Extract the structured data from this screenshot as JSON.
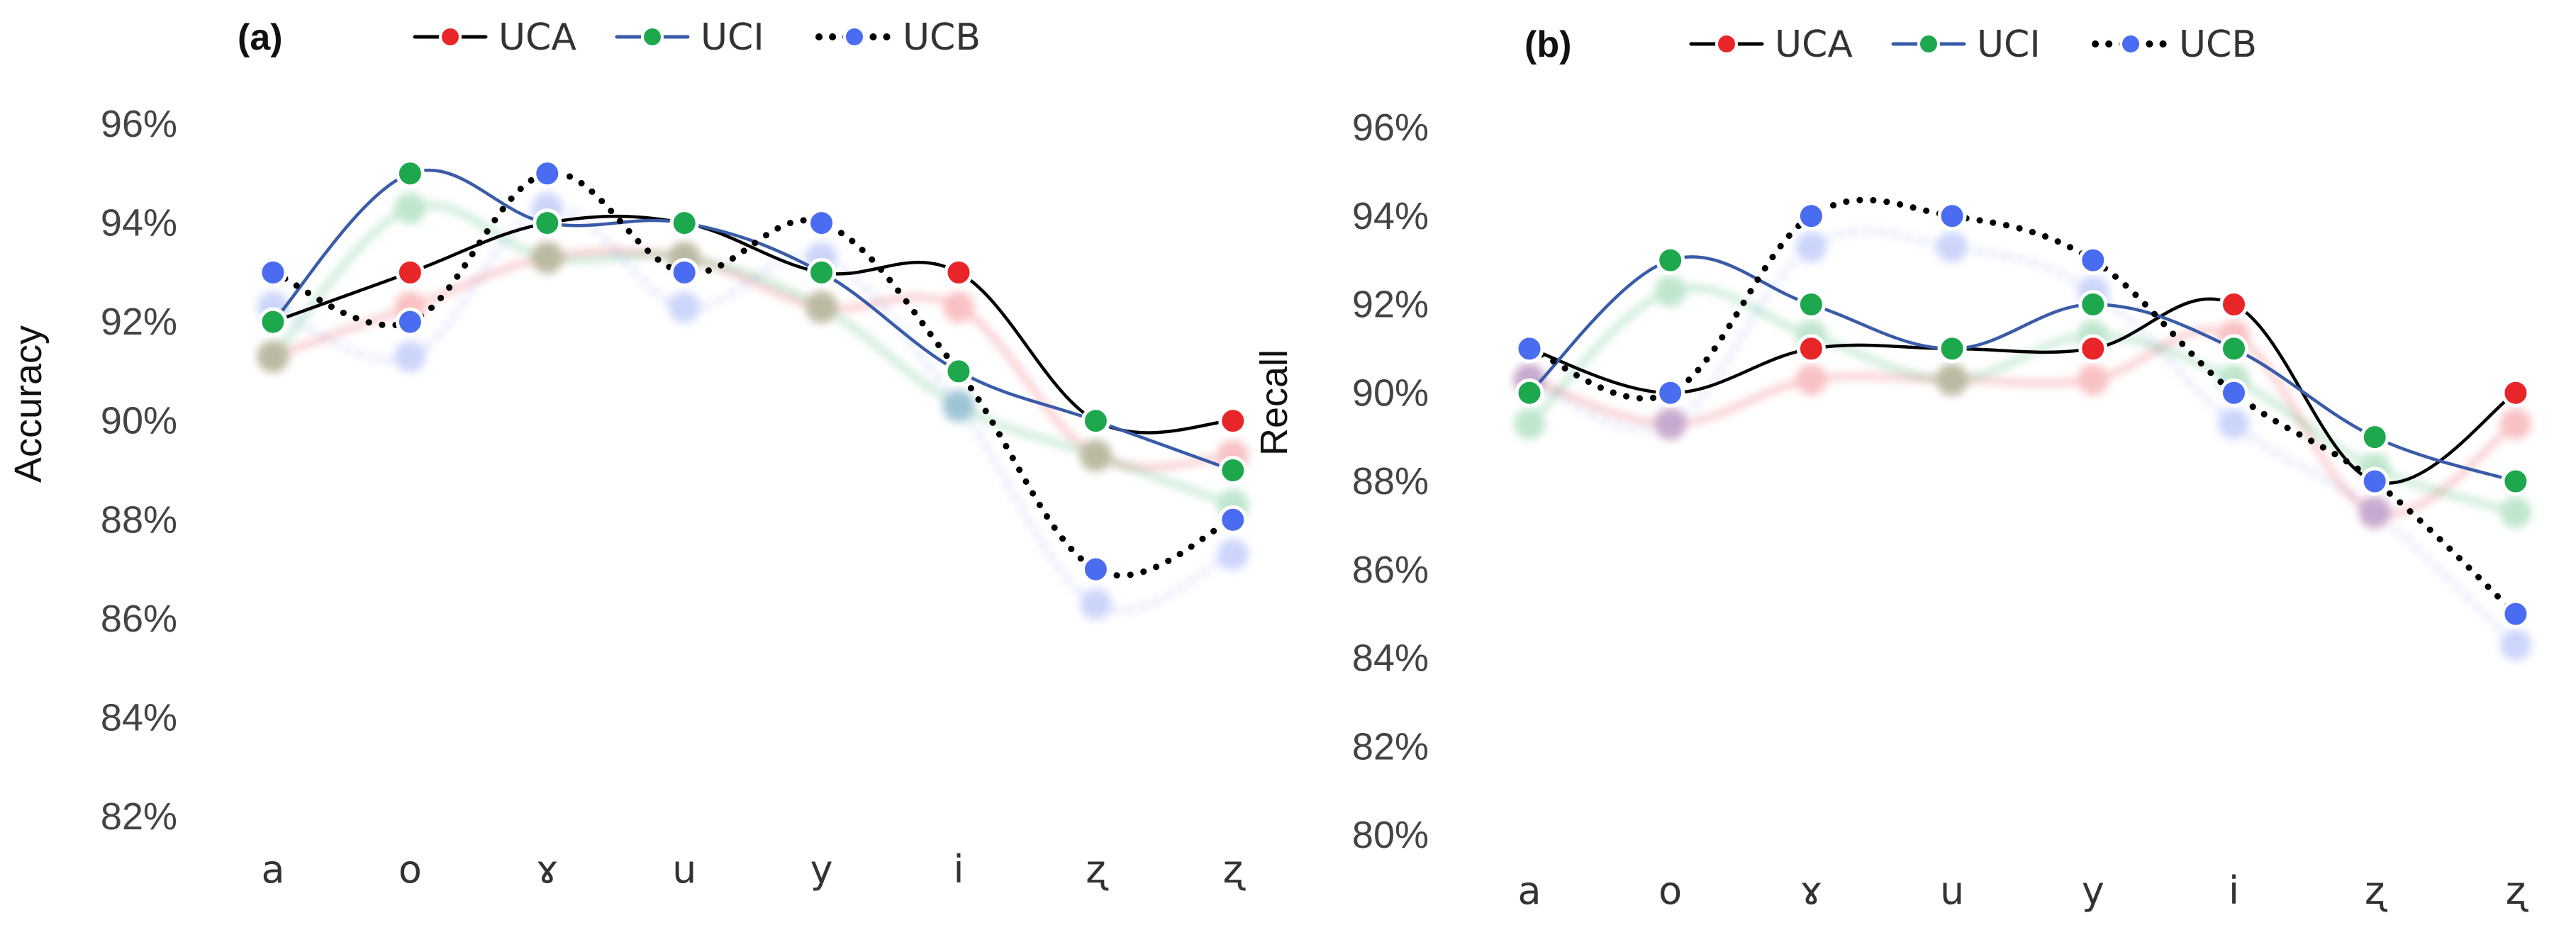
{
  "chart_data": [
    {
      "type": "line",
      "panel_label": "(a)",
      "title": "",
      "xlabel": "",
      "ylabel": "Accuracy",
      "ylim": [
        82,
        96
      ],
      "yticks": [
        "82%",
        "84%",
        "86%",
        "88%",
        "90%",
        "92%",
        "94%",
        "96%"
      ],
      "categories": [
        "a",
        "o",
        "ɤ",
        "u",
        "y",
        "i",
        "ʐ",
        "ʐ"
      ],
      "series": [
        {
          "name": "UCA",
          "color": "#e8262a",
          "line_color": "#000000",
          "style": "solid",
          "values": [
            92,
            93,
            94,
            94,
            93,
            93,
            90,
            90
          ]
        },
        {
          "name": "UCI",
          "color": "#1ea84e",
          "line_color": "#3a5ba8",
          "style": "solid",
          "values": [
            92,
            95,
            94,
            94,
            93,
            91,
            90,
            89
          ]
        },
        {
          "name": "UCB",
          "color": "#4a6cf0",
          "line_color": "#000000",
          "style": "dotted",
          "values": [
            93,
            92,
            95,
            93,
            94,
            91,
            87,
            88
          ]
        }
      ],
      "legend": "top"
    },
    {
      "type": "line",
      "panel_label": "(b)",
      "title": "",
      "xlabel": "",
      "ylabel": "Recall",
      "ylim": [
        80,
        96
      ],
      "yticks": [
        "80%",
        "82%",
        "84%",
        "86%",
        "88%",
        "90%",
        "92%",
        "94%",
        "96%"
      ],
      "categories": [
        "a",
        "o",
        "ɤ",
        "u",
        "y",
        "i",
        "ʐ",
        "ʐ"
      ],
      "series": [
        {
          "name": "UCA",
          "color": "#e8262a",
          "line_color": "#000000",
          "style": "solid",
          "values": [
            91,
            90,
            91,
            91,
            91,
            92,
            88,
            90
          ]
        },
        {
          "name": "UCI",
          "color": "#1ea84e",
          "line_color": "#3a5ba8",
          "style": "solid",
          "values": [
            90,
            93,
            92,
            91,
            92,
            91,
            89,
            88
          ]
        },
        {
          "name": "UCB",
          "color": "#4a6cf0",
          "line_color": "#000000",
          "style": "dotted",
          "values": [
            91,
            90,
            94,
            94,
            93,
            90,
            88,
            85
          ]
        }
      ],
      "legend": "top"
    }
  ]
}
